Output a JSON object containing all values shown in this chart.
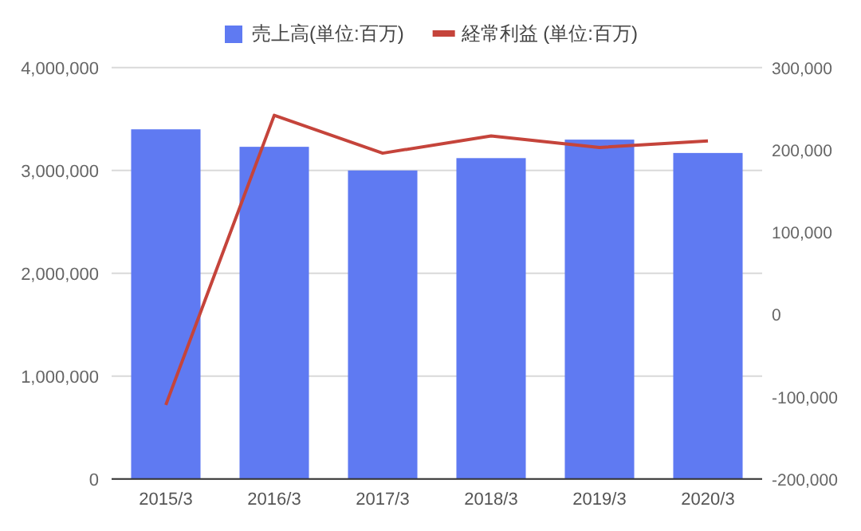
{
  "chart_data": {
    "type": "bar",
    "categories": [
      "2015/3",
      "2016/3",
      "2017/3",
      "2018/3",
      "2019/3",
      "2020/3"
    ],
    "series": [
      {
        "name": "売上高(単位:百万)",
        "color": "#5f7af2",
        "values": [
          3400000,
          3230000,
          3000000,
          3120000,
          3300000,
          3170000
        ]
      },
      {
        "name": "経常利益 (単位:百万)",
        "type": "line",
        "axis": "y2",
        "color": "#c5443b",
        "values": [
          -110000,
          242000,
          196000,
          217000,
          203000,
          211000
        ]
      }
    ],
    "ylim": [
      0,
      4000000
    ],
    "yticks": [
      {
        "value": 0,
        "label": "0"
      },
      {
        "value": 1000000,
        "label": "1,000,000"
      },
      {
        "value": 2000000,
        "label": "2,000,000"
      },
      {
        "value": 3000000,
        "label": "3,000,000"
      },
      {
        "value": 4000000,
        "label": "4,000,000"
      }
    ],
    "y2lim": [
      -200000,
      300000
    ],
    "y2ticks": [
      {
        "value": -200000,
        "label": "-200,000"
      },
      {
        "value": -100000,
        "label": "-100,000"
      },
      {
        "value": 0,
        "label": "0"
      },
      {
        "value": 100000,
        "label": "100,000"
      },
      {
        "value": 200000,
        "label": "200,000"
      },
      {
        "value": 300000,
        "label": "300,000"
      }
    ],
    "grid": "y",
    "legend": "top"
  }
}
